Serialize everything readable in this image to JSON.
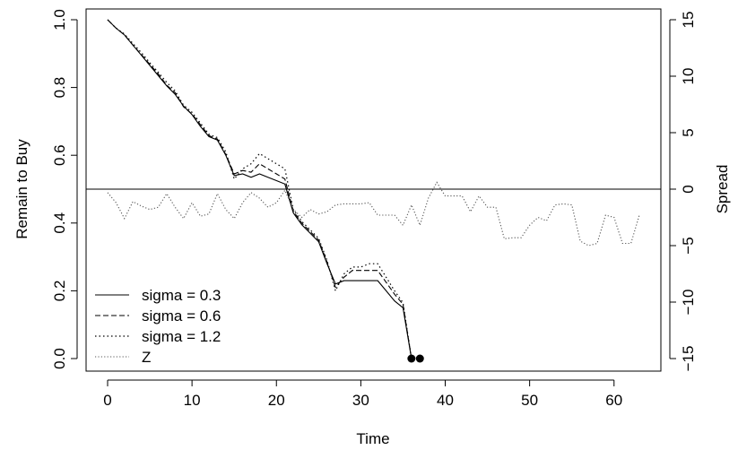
{
  "chart_data": {
    "type": "line",
    "xlabel": "Time",
    "ylabel": "Remain to Buy",
    "y2label": "Spread",
    "xlim": [
      0,
      63
    ],
    "ylim": [
      0,
      1
    ],
    "y2lim": [
      -15,
      15
    ],
    "xticks": [
      0,
      10,
      20,
      30,
      40,
      50,
      60
    ],
    "yticks": [
      0.0,
      0.2,
      0.4,
      0.6,
      0.8,
      1.0
    ],
    "ytick_labels": [
      "0.0",
      "0.2",
      "0.4",
      "0.6",
      "0.8",
      "1.0"
    ],
    "y2ticks": [
      -15,
      -10,
      -5,
      0,
      5,
      10,
      15
    ],
    "y2tick_labels": [
      "−15",
      "−10",
      "−5",
      "0",
      "5",
      "10",
      "15"
    ],
    "hline_y2": 0,
    "grid": false,
    "legend_position": "bottom-left",
    "series": [
      {
        "name": "sigma = 0.3",
        "style": "solid",
        "axis": "left",
        "x": [
          0,
          1,
          2,
          3,
          4,
          5,
          6,
          7,
          8,
          9,
          10,
          11,
          12,
          13,
          14,
          15,
          16,
          17,
          18,
          19,
          20,
          21,
          22,
          23,
          24,
          25,
          26,
          27,
          28,
          29,
          30,
          31,
          32,
          33,
          34,
          35,
          36
        ],
        "y": [
          1.0,
          0.975,
          0.955,
          0.925,
          0.895,
          0.865,
          0.835,
          0.805,
          0.78,
          0.745,
          0.72,
          0.685,
          0.655,
          0.645,
          0.6,
          0.54,
          0.545,
          0.535,
          0.545,
          0.535,
          0.525,
          0.515,
          0.43,
          0.395,
          0.37,
          0.345,
          0.28,
          0.22,
          0.23,
          0.23,
          0.23,
          0.23,
          0.23,
          0.2,
          0.17,
          0.15,
          0.0
        ]
      },
      {
        "name": "sigma = 0.6",
        "style": "dashed",
        "axis": "left",
        "x": [
          0,
          1,
          2,
          3,
          4,
          5,
          6,
          7,
          8,
          9,
          10,
          11,
          12,
          13,
          14,
          15,
          16,
          17,
          18,
          19,
          20,
          21,
          22,
          23,
          24,
          25,
          26,
          27,
          28,
          29,
          30,
          31,
          32,
          33,
          34,
          35,
          36
        ],
        "y": [
          1.0,
          0.975,
          0.955,
          0.925,
          0.897,
          0.868,
          0.84,
          0.807,
          0.785,
          0.743,
          0.722,
          0.69,
          0.658,
          0.648,
          0.602,
          0.545,
          0.555,
          0.55,
          0.575,
          0.56,
          0.545,
          0.53,
          0.435,
          0.4,
          0.375,
          0.35,
          0.285,
          0.21,
          0.24,
          0.26,
          0.26,
          0.26,
          0.26,
          0.225,
          0.19,
          0.16,
          0.0
        ]
      },
      {
        "name": "sigma = 1.2",
        "style": "dotted",
        "axis": "left",
        "x": [
          0,
          1,
          2,
          3,
          4,
          5,
          6,
          7,
          8,
          9,
          10,
          11,
          12,
          13,
          14,
          15,
          16,
          17,
          18,
          19,
          20,
          21,
          22,
          23,
          24,
          25,
          26,
          27,
          28,
          29,
          30,
          31,
          32,
          33,
          34,
          35,
          36
        ],
        "y": [
          1.0,
          0.975,
          0.958,
          0.93,
          0.903,
          0.873,
          0.845,
          0.815,
          0.79,
          0.748,
          0.727,
          0.695,
          0.662,
          0.652,
          0.61,
          0.53,
          0.56,
          0.575,
          0.605,
          0.59,
          0.575,
          0.56,
          0.44,
          0.405,
          0.38,
          0.355,
          0.29,
          0.2,
          0.25,
          0.27,
          0.27,
          0.28,
          0.28,
          0.24,
          0.2,
          0.165,
          0.0
        ]
      },
      {
        "name": "Z",
        "style": "dotted-light",
        "axis": "right",
        "x": [
          0,
          1,
          2,
          3,
          4,
          5,
          6,
          7,
          8,
          9,
          10,
          11,
          12,
          13,
          14,
          15,
          16,
          17,
          18,
          19,
          20,
          21,
          22,
          23,
          24,
          25,
          26,
          27,
          28,
          29,
          30,
          31,
          32,
          33,
          34,
          35,
          36,
          37,
          38,
          39,
          40,
          41,
          42,
          43,
          44,
          45,
          46,
          47,
          48,
          49,
          50,
          51,
          52,
          53,
          54,
          55,
          56,
          57,
          58,
          59,
          60,
          61,
          62,
          63
        ],
        "y": [
          -0.3,
          -1.2,
          -2.6,
          -1.1,
          -1.5,
          -1.8,
          -1.6,
          -0.4,
          -1.6,
          -2.6,
          -1.2,
          -2.4,
          -2.2,
          -0.4,
          -1.8,
          -2.6,
          -1.2,
          -0.3,
          -0.8,
          -1.6,
          -1.2,
          -0.1,
          -1.8,
          -2.5,
          -1.8,
          -2.2,
          -2.0,
          -1.4,
          -1.3,
          -1.3,
          -1.3,
          -1.2,
          -2.3,
          -2.3,
          -2.3,
          -3.2,
          -1.4,
          -3.2,
          -0.8,
          0.6,
          -0.6,
          -0.6,
          -0.6,
          -2.0,
          -0.6,
          -1.6,
          -1.6,
          -4.4,
          -4.3,
          -4.3,
          -3.2,
          -2.5,
          -2.8,
          -1.4,
          -1.3,
          -1.4,
          -4.6,
          -5.0,
          -4.8,
          -2.3,
          -2.5,
          -4.8,
          -4.8,
          -2.3
        ]
      }
    ],
    "end_markers": [
      {
        "x": 36,
        "y": 0.0
      },
      {
        "x": 37,
        "y": 0.0
      }
    ]
  }
}
